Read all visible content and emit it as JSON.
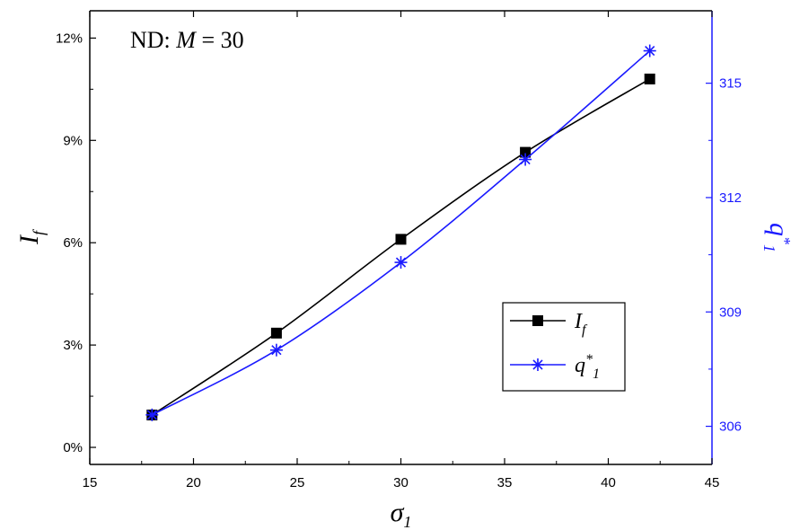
{
  "chart_data": {
    "type": "line",
    "annotation": {
      "prefix": "ND: ",
      "var": "M",
      "suffix": " = 30"
    },
    "x": [
      18,
      24,
      30,
      36,
      42
    ],
    "xlim": [
      15,
      45
    ],
    "xticks": [
      "15",
      "20",
      "25",
      "30",
      "35",
      "40",
      "45"
    ],
    "xlabel": {
      "main": "σ",
      "sub": "1"
    },
    "ylabel_left": {
      "main": "I",
      "sub": "f"
    },
    "ylabel_right": {
      "main": "q",
      "sup": "*",
      "sub": "1"
    },
    "ylim_left": [
      -0.5,
      12.8
    ],
    "ylim_right": [
      305.0,
      316.9
    ],
    "yticks_left": [
      "0%",
      "3%",
      "6%",
      "9%",
      "12%"
    ],
    "yticks_right": [
      "306",
      "309",
      "312",
      "315"
    ],
    "series": [
      {
        "name": "I_f",
        "axis": "left",
        "marker": "square",
        "color": "#000000",
        "values": [
          0.95,
          3.35,
          6.1,
          8.65,
          10.8
        ]
      },
      {
        "name": "q*_1",
        "axis": "right",
        "marker": "asterisk",
        "color": "#1a1aff",
        "values": [
          306.3,
          308.0,
          310.3,
          313.0,
          315.85
        ]
      }
    ],
    "legend": {
      "position": "right",
      "entries": [
        {
          "main": "I",
          "sub": "f"
        },
        {
          "main": "q",
          "sup": "*",
          "sub": "1"
        }
      ]
    },
    "grid": false
  }
}
